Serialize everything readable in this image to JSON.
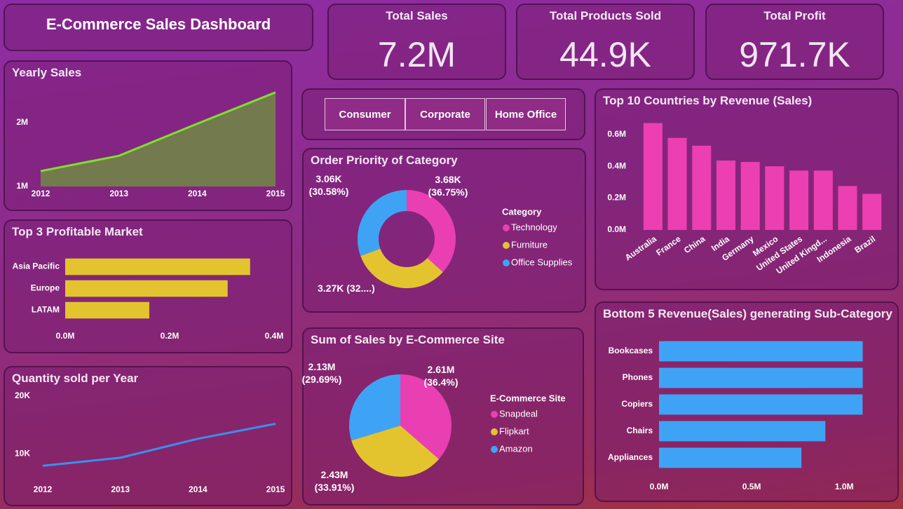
{
  "header": {
    "title": "E-Commerce Sales Dashboard"
  },
  "kpis": [
    {
      "label": "Total Sales",
      "value": "7.2M"
    },
    {
      "label": "Total Products Sold",
      "value": "44.9K"
    },
    {
      "label": "Total Profit",
      "value": "971.7K"
    }
  ],
  "slicer": {
    "options": [
      "Consumer",
      "Corporate",
      "Home Office"
    ]
  },
  "chart_data": [
    {
      "type": "area",
      "title": "Yearly Sales",
      "categories": [
        "2012",
        "2013",
        "2014",
        "2015"
      ],
      "values": [
        1240000,
        1480000,
        1980000,
        2470000
      ],
      "color": "#7ee02c",
      "fill": "#737a4e",
      "ylim": [
        1000000,
        2500000
      ],
      "yticks": [
        {
          "value": 1000000,
          "label": "1M"
        },
        {
          "value": 2000000,
          "label": "2M"
        }
      ]
    },
    {
      "type": "barh",
      "title": "Top 3 Profitable Market",
      "categories": [
        "Asia Pacific",
        "Europe",
        "LATAM"
      ],
      "values": [
        354000,
        311000,
        161000
      ],
      "color": "#e3c42f",
      "xlim": [
        0,
        400000
      ],
      "xticks": [
        {
          "value": 0,
          "label": "0.0M"
        },
        {
          "value": 200000,
          "label": "0.2M"
        },
        {
          "value": 400000,
          "label": "0.4M"
        }
      ]
    },
    {
      "type": "line",
      "title": "Quantity sold per Year",
      "categories": [
        "2012",
        "2013",
        "2014",
        "2015"
      ],
      "values": [
        7900,
        9300,
        12600,
        15200
      ],
      "color": "#3a8ff0",
      "ylim": [
        6000,
        20000
      ],
      "yticks": [
        {
          "value": 10000,
          "label": "10K"
        },
        {
          "value": 20000,
          "label": "20K"
        }
      ]
    },
    {
      "type": "donut",
      "title": "Order Priority of Category",
      "legend_title": "Category",
      "categories": [
        "Technology",
        "Furniture",
        "Office Supplies"
      ],
      "values": [
        3680,
        3270,
        3060
      ],
      "value_labels": [
        "3.68K (36.75%)",
        "3.27K (32....)",
        "3.06K (30.58%)"
      ],
      "colors": [
        "#e93fb2",
        "#e3c42f",
        "#3fa3f5"
      ]
    },
    {
      "type": "pie",
      "title": "Sum of Sales by E-Commerce Site",
      "legend_title": "E-Commerce Site",
      "categories": [
        "Snapdeal",
        "Flipkart",
        "Amazon"
      ],
      "values": [
        2610000,
        2430000,
        2130000
      ],
      "value_labels": [
        "2.61M (36.4%)",
        "2.43M (33.91%)",
        "2.13M (29.69%)"
      ],
      "colors": [
        "#e93fb2",
        "#e3c42f",
        "#3fa3f5"
      ]
    },
    {
      "type": "bar",
      "title": "Top 10 Countries by Revenue (Sales)",
      "categories": [
        "Australia",
        "France",
        "China",
        "India",
        "Germany",
        "Mexico",
        "United States",
        "United Kingd...",
        "Indonesia",
        "Brazil"
      ],
      "values": [
        671000,
        578000,
        529000,
        436000,
        427000,
        400000,
        373000,
        373000,
        276000,
        227000
      ],
      "color": "#ec3fb2",
      "ylim": [
        0,
        700000
      ],
      "yticks": [
        {
          "value": 0,
          "label": "0.0M"
        },
        {
          "value": 200000,
          "label": "0.2M"
        },
        {
          "value": 400000,
          "label": "0.4M"
        },
        {
          "value": 600000,
          "label": "0.6M"
        }
      ]
    },
    {
      "type": "barh",
      "title": "Bottom 5 Revenue(Sales) generating Sub-Category",
      "categories": [
        "Bookcases",
        "Phones",
        "Copiers",
        "Chairs",
        "Appliances"
      ],
      "values": [
        1100000,
        1100000,
        1099000,
        898000,
        769000
      ],
      "color": "#3fa3f5",
      "xlim": [
        0,
        1200000
      ],
      "xticks": [
        {
          "value": 0,
          "label": "0.0M"
        },
        {
          "value": 500000,
          "label": "0.5M"
        },
        {
          "value": 1000000,
          "label": "1.0M"
        }
      ]
    }
  ]
}
